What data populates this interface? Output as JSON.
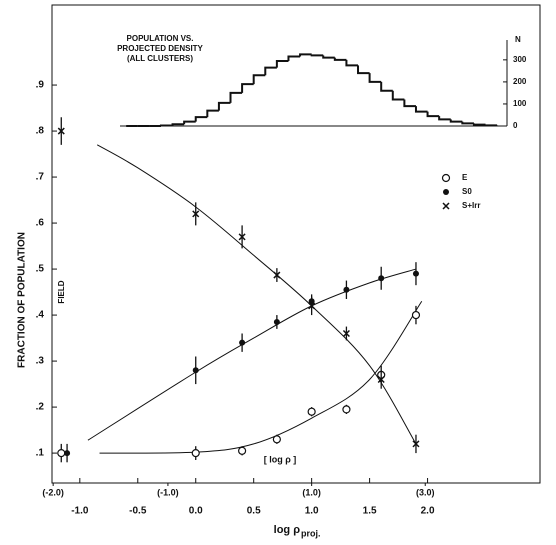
{
  "chart_data": {
    "type": "scatter",
    "ylabel": "FRACTION OF POPULATION",
    "xlabel": "log ρ",
    "xlabel_sub": "proj.",
    "xlim": [
      -1.24,
      2.97
    ],
    "ylim": [
      0.035,
      1.074
    ],
    "xticks": [
      {
        "value": -1.0,
        "label": "-1.0"
      },
      {
        "value": -0.5,
        "label": "-0.5"
      },
      {
        "value": 0.0,
        "label": "0.0"
      },
      {
        "value": 0.5,
        "label": "0.5"
      },
      {
        "value": 1.0,
        "label": "1.0"
      },
      {
        "value": 1.5,
        "label": "1.5"
      },
      {
        "value": 2.0,
        "label": "2.0"
      }
    ],
    "yticks": [
      {
        "value": 0.1,
        "label": ".1"
      },
      {
        "value": 0.2,
        "label": ".2"
      },
      {
        "value": 0.3,
        "label": ".3"
      },
      {
        "value": 0.4,
        "label": ".4"
      },
      {
        "value": 0.5,
        "label": ".5"
      },
      {
        "value": 0.6,
        "label": ".6"
      },
      {
        "value": 0.7,
        "label": ".7"
      },
      {
        "value": 0.8,
        "label": ".8"
      },
      {
        "value": 0.9,
        "label": ".9"
      }
    ],
    "x2label": "[ log ρ ]",
    "x2ticks": [
      {
        "value": -1.23,
        "label": "(-2.0)"
      },
      {
        "value": -0.24,
        "label": "(-1.0)"
      },
      {
        "value": 1.0,
        "label": "(1.0)"
      },
      {
        "value": 1.98,
        "label": "(3.0)"
      }
    ],
    "field_label": "FIELD",
    "x": [
      0.0,
      0.4,
      0.7,
      1.0,
      1.3,
      1.6,
      1.9
    ],
    "series": [
      {
        "name": "E",
        "marker": "open",
        "color": "#111111",
        "values": [
          0.1,
          0.105,
          0.13,
          0.19,
          0.195,
          0.27,
          0.4
        ],
        "errors": [
          0.015,
          0.01,
          0.01,
          0.01,
          0.01,
          0.02,
          0.02
        ],
        "field_x": -1.16,
        "field_value": 0.1,
        "field_error": 0.02
      },
      {
        "name": "S0",
        "marker": "filled",
        "color": "#111111",
        "values": [
          0.28,
          0.34,
          0.385,
          0.43,
          0.455,
          0.48,
          0.49
        ],
        "errors": [
          0.03,
          0.02,
          0.015,
          0.015,
          0.02,
          0.025,
          0.025
        ],
        "field_x": -1.11,
        "field_value": 0.1,
        "field_error": 0.02
      },
      {
        "name": "S+Irr",
        "marker": "cross",
        "color": "#111111",
        "values": [
          0.62,
          0.57,
          0.487,
          0.42,
          0.36,
          0.26,
          0.12
        ],
        "errors": [
          0.025,
          0.025,
          0.015,
          0.02,
          0.015,
          0.02,
          0.02
        ],
        "field_x": -1.16,
        "field_value": 0.8,
        "field_error": 0.03
      }
    ],
    "fits": [
      {
        "x": [
          -0.83,
          0.0,
          0.5,
          1.0,
          1.5,
          1.95
        ],
        "values": [
          0.1,
          0.102,
          0.12,
          0.176,
          0.26,
          0.43
        ]
      },
      {
        "x": [
          -0.93,
          0.0,
          0.5,
          1.0,
          1.5,
          1.9
        ],
        "values": [
          0.128,
          0.276,
          0.35,
          0.42,
          0.47,
          0.5
        ]
      },
      {
        "x": [
          -0.85,
          -0.5,
          0.0,
          0.5,
          1.0,
          1.5,
          1.9
        ],
        "values": [
          0.77,
          0.72,
          0.635,
          0.53,
          0.42,
          0.29,
          0.12
        ]
      }
    ],
    "inset": {
      "type": "histogram",
      "title_lines": [
        "POPULATION VS.",
        "PROJECTED DENSITY",
        "(ALL CLUSTERS)"
      ],
      "ylabel": "N",
      "ylim": [
        0,
        390
      ],
      "yticks": [
        0,
        100,
        200,
        300
      ],
      "bins": [
        -0.6,
        -0.5,
        -0.4,
        -0.3,
        -0.2,
        -0.1,
        0.0,
        0.1,
        0.2,
        0.3,
        0.4,
        0.5,
        0.6,
        0.7,
        0.8,
        0.9,
        1.0,
        1.1,
        1.2,
        1.3,
        1.4,
        1.5,
        1.6,
        1.7,
        1.8,
        1.9,
        2.0,
        2.1,
        2.2,
        2.3,
        2.4,
        2.5,
        2.6
      ],
      "counts": [
        0,
        0,
        0,
        2,
        8,
        20,
        40,
        70,
        105,
        150,
        190,
        230,
        265,
        295,
        315,
        325,
        320,
        310,
        300,
        275,
        240,
        200,
        160,
        120,
        90,
        65,
        45,
        30,
        20,
        12,
        6,
        3
      ]
    }
  }
}
